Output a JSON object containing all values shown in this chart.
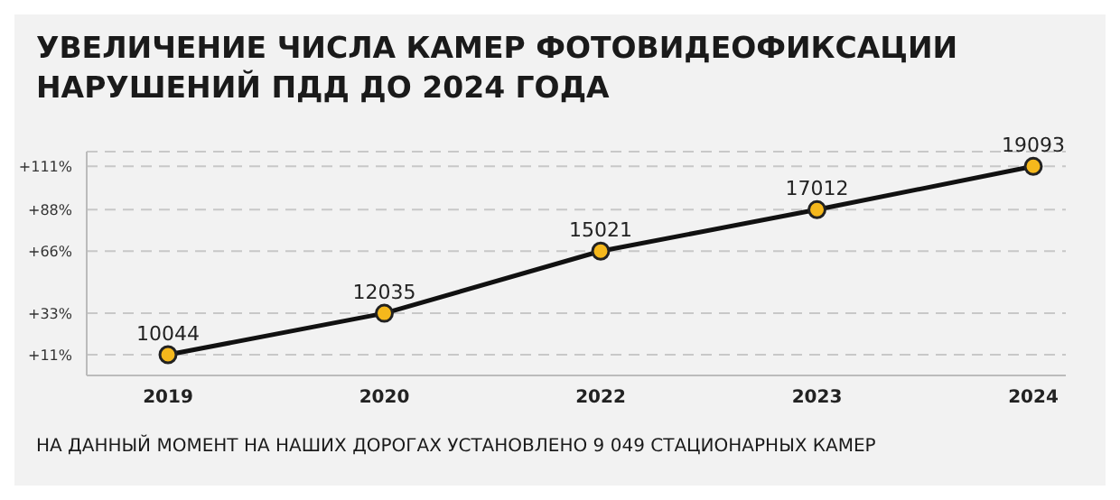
{
  "chart_data": {
    "type": "line",
    "title": "УВЕЛИЧЕНИЕ ЧИСЛА КАМЕР ФОТОВИДЕОФИКСАЦИИ НАРУШЕНИЙ ПДД ДО 2024 ГОДА",
    "categories": [
      "2019",
      "2020",
      "2022",
      "2023",
      "2024"
    ],
    "series": [
      {
        "color": "#111111",
        "values": [
          10044,
          12035,
          15021,
          17012,
          19093
        ]
      }
    ],
    "ylim": [
      9049,
      19800
    ],
    "y2lim": [
      0,
      118.8
    ],
    "y2ticks": [
      {
        "value": 11,
        "label": "+11%"
      },
      {
        "value": 33,
        "label": "+33%"
      },
      {
        "value": 66,
        "label": "+66%"
      },
      {
        "value": 88,
        "label": "+88%"
      },
      {
        "value": 111,
        "label": "+111%"
      }
    ],
    "grid": "y",
    "marker": "circle",
    "data_labels": true,
    "annotations": [
      "НА ДАННЫЙ МОМЕНТ НА НАШИХ ДОРОГАХ УСТАНОВЛЕНО 9 049 СТАЦИОНАРНЫХ КАМЕР"
    ]
  }
}
